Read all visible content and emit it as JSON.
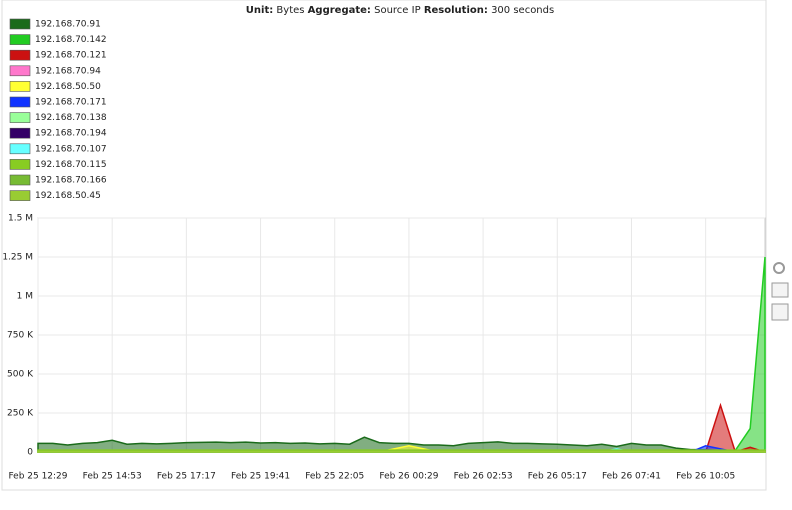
{
  "chart_data": {
    "type": "area",
    "header": {
      "unit_label": "Unit:",
      "unit": "Bytes",
      "aggregate_label": "Aggregate:",
      "aggregate": "Source IP",
      "resolution_label": "Resolution:",
      "resolution": "300 seconds"
    },
    "categories": [
      "Feb 25 12:29",
      null,
      null,
      null,
      null,
      "Feb 25 14:53",
      null,
      null,
      null,
      null,
      "Feb 25 17:17",
      null,
      null,
      null,
      null,
      "Feb 25 19:41",
      null,
      null,
      null,
      null,
      "Feb 25 22:05",
      null,
      null,
      null,
      null,
      "Feb 26 00:29",
      null,
      null,
      null,
      null,
      "Feb 26 02:53",
      null,
      null,
      null,
      null,
      "Feb 26 05:17",
      null,
      null,
      null,
      null,
      "Feb 26 07:41",
      null,
      null,
      null,
      null,
      "Feb 26 10:05",
      null,
      null,
      null,
      null
    ],
    "ylim": [
      0,
      1500000
    ],
    "yticks": [
      {
        "value": 0,
        "label": "0"
      },
      {
        "value": 250000,
        "label": "250 K"
      },
      {
        "value": 500000,
        "label": "500 K"
      },
      {
        "value": 750000,
        "label": "750 K"
      },
      {
        "value": 1000000,
        "label": "1 M"
      },
      {
        "value": 1250000,
        "label": "1.25 M"
      },
      {
        "value": 1500000,
        "label": "1.5 M"
      }
    ],
    "grid": true,
    "series": [
      {
        "name": "192.168.70.91",
        "color": "#1a6b1a",
        "values": [
          55000,
          55000,
          45000,
          55000,
          60000,
          75000,
          50000,
          55000,
          52000,
          55000,
          60000,
          62000,
          63000,
          60000,
          63000,
          58000,
          60000,
          55000,
          58000,
          52000,
          55000,
          50000,
          95000,
          60000,
          55000,
          55000,
          45000,
          45000,
          40000,
          55000,
          60000,
          65000,
          55000,
          55000,
          52000,
          50000,
          45000,
          40000,
          50000,
          35000,
          55000,
          45000,
          45000,
          25000,
          15000,
          15000,
          10000,
          10000,
          8000,
          8000
        ]
      },
      {
        "name": "192.168.70.142",
        "color": "#22cc22",
        "values": [
          0,
          0,
          0,
          0,
          0,
          0,
          0,
          0,
          0,
          0,
          0,
          0,
          0,
          0,
          0,
          0,
          0,
          0,
          0,
          0,
          0,
          0,
          0,
          0,
          0,
          0,
          0,
          0,
          0,
          0,
          0,
          0,
          0,
          0,
          0,
          0,
          0,
          0,
          0,
          0,
          0,
          0,
          0,
          0,
          0,
          0,
          5000,
          10000,
          150000,
          1250000
        ]
      },
      {
        "name": "192.168.70.121",
        "color": "#cc1111",
        "values": [
          0,
          0,
          0,
          0,
          0,
          0,
          0,
          0,
          0,
          0,
          0,
          0,
          0,
          0,
          0,
          0,
          0,
          0,
          0,
          0,
          0,
          0,
          0,
          0,
          0,
          0,
          0,
          0,
          0,
          0,
          0,
          0,
          0,
          0,
          0,
          0,
          0,
          0,
          0,
          0,
          0,
          0,
          0,
          0,
          0,
          0,
          300000,
          0,
          30000,
          0
        ]
      },
      {
        "name": "192.168.70.94",
        "color": "#ff77cc",
        "values": [
          0,
          5000,
          0,
          0,
          0,
          0,
          0,
          0,
          5000,
          0,
          0,
          0,
          0,
          0,
          0,
          0,
          0,
          0,
          0,
          0,
          0,
          0,
          0,
          0,
          0,
          0,
          0,
          0,
          0,
          0,
          0,
          0,
          0,
          0,
          0,
          0,
          0,
          0,
          0,
          0,
          0,
          0,
          0,
          0,
          0,
          0,
          0,
          0,
          0,
          0
        ]
      },
      {
        "name": "192.168.50.50",
        "color": "#ffff33",
        "values": [
          0,
          0,
          0,
          0,
          0,
          0,
          0,
          0,
          0,
          0,
          0,
          0,
          0,
          0,
          0,
          0,
          0,
          0,
          0,
          0,
          0,
          0,
          0,
          0,
          20000,
          40000,
          20000,
          0,
          0,
          0,
          0,
          0,
          0,
          0,
          0,
          0,
          0,
          0,
          0,
          0,
          0,
          0,
          0,
          0,
          0,
          0,
          0,
          0,
          0,
          0
        ]
      },
      {
        "name": "192.168.70.171",
        "color": "#1133ff",
        "values": [
          0,
          0,
          0,
          0,
          0,
          0,
          0,
          0,
          0,
          0,
          0,
          0,
          0,
          0,
          0,
          0,
          0,
          0,
          0,
          0,
          0,
          0,
          0,
          0,
          0,
          0,
          0,
          0,
          0,
          0,
          0,
          0,
          0,
          0,
          0,
          0,
          0,
          0,
          0,
          0,
          0,
          0,
          0,
          0,
          0,
          40000,
          20000,
          0,
          0,
          0
        ]
      },
      {
        "name": "192.168.70.138",
        "color": "#99ff99",
        "values": [
          0,
          0,
          0,
          0,
          0,
          0,
          0,
          0,
          0,
          0,
          0,
          0,
          0,
          0,
          0,
          0,
          0,
          0,
          0,
          0,
          0,
          0,
          0,
          0,
          0,
          0,
          0,
          0,
          0,
          0,
          0,
          0,
          0,
          0,
          0,
          0,
          0,
          0,
          0,
          0,
          0,
          0,
          0,
          0,
          0,
          0,
          0,
          0,
          0,
          0
        ]
      },
      {
        "name": "192.168.70.194",
        "color": "#330066",
        "values": [
          0,
          0,
          0,
          0,
          0,
          0,
          0,
          0,
          0,
          0,
          0,
          0,
          0,
          0,
          0,
          0,
          0,
          0,
          0,
          0,
          0,
          0,
          0,
          0,
          0,
          0,
          0,
          0,
          0,
          0,
          0,
          0,
          0,
          0,
          0,
          0,
          0,
          0,
          0,
          0,
          0,
          0,
          0,
          0,
          0,
          0,
          0,
          0,
          0,
          0
        ]
      },
      {
        "name": "192.168.70.107",
        "color": "#66ffff",
        "values": [
          0,
          0,
          0,
          0,
          0,
          0,
          0,
          0,
          0,
          0,
          0,
          0,
          0,
          0,
          0,
          0,
          0,
          0,
          0,
          0,
          0,
          0,
          0,
          0,
          0,
          0,
          0,
          0,
          0,
          0,
          0,
          0,
          0,
          0,
          0,
          0,
          0,
          0,
          0,
          20000,
          0,
          0,
          0,
          0,
          0,
          0,
          0,
          0,
          0,
          0
        ]
      },
      {
        "name": "192.168.70.115",
        "color": "#88cc22",
        "values": [
          12000,
          12000,
          12000,
          12000,
          12000,
          12000,
          12000,
          12000,
          12000,
          12000,
          12000,
          12000,
          12000,
          12000,
          12000,
          12000,
          12000,
          12000,
          12000,
          12000,
          12000,
          12000,
          12000,
          12000,
          12000,
          12000,
          12000,
          12000,
          12000,
          12000,
          12000,
          12000,
          12000,
          12000,
          12000,
          12000,
          12000,
          12000,
          12000,
          12000,
          12000,
          12000,
          12000,
          12000,
          12000,
          12000,
          12000,
          12000,
          12000,
          12000
        ]
      },
      {
        "name": "192.168.70.166",
        "color": "#77bb33",
        "values": [
          5000,
          5000,
          5000,
          5000,
          5000,
          5000,
          5000,
          5000,
          5000,
          5000,
          5000,
          5000,
          5000,
          5000,
          5000,
          5000,
          5000,
          5000,
          5000,
          5000,
          5000,
          5000,
          5000,
          5000,
          5000,
          5000,
          5000,
          5000,
          5000,
          5000,
          5000,
          5000,
          5000,
          5000,
          5000,
          5000,
          5000,
          5000,
          5000,
          5000,
          5000,
          5000,
          5000,
          5000,
          5000,
          5000,
          5000,
          5000,
          5000,
          5000
        ]
      },
      {
        "name": "192.168.50.45",
        "color": "#99cc33",
        "values": [
          3000,
          3000,
          3000,
          3000,
          3000,
          3000,
          3000,
          3000,
          3000,
          3000,
          3000,
          3000,
          3000,
          3000,
          3000,
          3000,
          3000,
          3000,
          3000,
          3000,
          3000,
          3000,
          3000,
          3000,
          3000,
          3000,
          3000,
          3000,
          3000,
          3000,
          3000,
          3000,
          3000,
          3000,
          3000,
          3000,
          3000,
          3000,
          3000,
          3000,
          3000,
          3000,
          3000,
          3000,
          3000,
          3000,
          3000,
          3000,
          3000,
          3000
        ]
      }
    ]
  }
}
